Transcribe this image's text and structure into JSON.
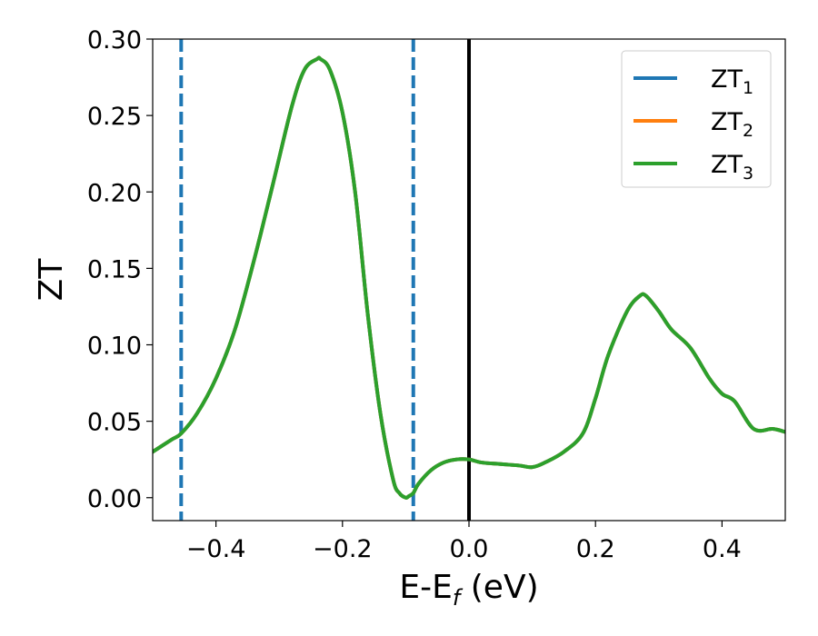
{
  "chart_data": {
    "type": "line",
    "xlabel": "E-E",
    "xlabel_sub": "f",
    "xlabel_unit": " (eV)",
    "ylabel": "ZT",
    "xlim": [
      -0.5,
      0.5
    ],
    "ylim": [
      -0.015,
      0.3
    ],
    "xticks": [
      -0.4,
      -0.2,
      0.0,
      0.2,
      0.4
    ],
    "xtick_labels": [
      "−0.4",
      "−0.2",
      "0.0",
      "0.2",
      "0.4"
    ],
    "yticks": [
      0.0,
      0.05,
      0.1,
      0.15,
      0.2,
      0.25,
      0.3
    ],
    "ytick_labels": [
      "0.00",
      "0.05",
      "0.10",
      "0.15",
      "0.20",
      "0.25",
      "0.30"
    ],
    "grid": false,
    "legend_position": "top-right",
    "vlines": [
      {
        "x": -0.455,
        "style": "dashed",
        "color": "#1f77b4"
      },
      {
        "x": -0.088,
        "style": "dashed",
        "color": "#1f77b4"
      },
      {
        "x": 0.0,
        "style": "solid",
        "color": "#000000"
      }
    ],
    "series": [
      {
        "name": "ZT",
        "sub": "1",
        "color": "#1f77b4",
        "x": [
          -0.5,
          -0.47,
          -0.455,
          -0.43,
          -0.4,
          -0.37,
          -0.34,
          -0.31,
          -0.28,
          -0.26,
          -0.24,
          -0.235,
          -0.22,
          -0.2,
          -0.18,
          -0.16,
          -0.14,
          -0.12,
          -0.11,
          -0.1,
          -0.095,
          -0.088,
          -0.08,
          -0.06,
          -0.04,
          -0.02,
          0.0,
          0.02,
          0.05,
          0.08,
          0.1,
          0.12,
          0.15,
          0.18,
          0.2,
          0.22,
          0.25,
          0.27,
          0.28,
          0.3,
          0.32,
          0.35,
          0.38,
          0.4,
          0.42,
          0.45,
          0.48,
          0.5
        ],
        "y": [
          0.03,
          0.038,
          0.042,
          0.055,
          0.078,
          0.11,
          0.155,
          0.205,
          0.256,
          0.28,
          0.287,
          0.287,
          0.28,
          0.252,
          0.2,
          0.12,
          0.055,
          0.012,
          0.003,
          0.0,
          0.001,
          0.003,
          0.009,
          0.018,
          0.023,
          0.025,
          0.025,
          0.023,
          0.022,
          0.021,
          0.02,
          0.023,
          0.03,
          0.042,
          0.065,
          0.093,
          0.122,
          0.132,
          0.132,
          0.122,
          0.11,
          0.098,
          0.078,
          0.068,
          0.063,
          0.045,
          0.045,
          0.043
        ]
      },
      {
        "name": "ZT",
        "sub": "2",
        "color": "#ff7f0e",
        "x": [
          -0.5,
          -0.47,
          -0.455,
          -0.43,
          -0.4,
          -0.37,
          -0.34,
          -0.31,
          -0.28,
          -0.26,
          -0.24,
          -0.235,
          -0.22,
          -0.2,
          -0.18,
          -0.16,
          -0.14,
          -0.12,
          -0.11,
          -0.1,
          -0.095,
          -0.088,
          -0.08,
          -0.06,
          -0.04,
          -0.02,
          0.0,
          0.02,
          0.05,
          0.08,
          0.1,
          0.12,
          0.15,
          0.18,
          0.2,
          0.22,
          0.25,
          0.27,
          0.28,
          0.3,
          0.32,
          0.35,
          0.38,
          0.4,
          0.42,
          0.45,
          0.48,
          0.5
        ],
        "y": [
          0.03,
          0.038,
          0.042,
          0.055,
          0.078,
          0.11,
          0.155,
          0.205,
          0.256,
          0.28,
          0.287,
          0.287,
          0.28,
          0.252,
          0.2,
          0.12,
          0.055,
          0.012,
          0.003,
          0.0,
          0.001,
          0.003,
          0.009,
          0.018,
          0.023,
          0.025,
          0.025,
          0.023,
          0.022,
          0.021,
          0.02,
          0.023,
          0.03,
          0.042,
          0.065,
          0.093,
          0.122,
          0.132,
          0.132,
          0.122,
          0.11,
          0.098,
          0.078,
          0.068,
          0.063,
          0.045,
          0.045,
          0.043
        ]
      },
      {
        "name": "ZT",
        "sub": "3",
        "color": "#2ca02c",
        "x": [
          -0.5,
          -0.47,
          -0.455,
          -0.43,
          -0.4,
          -0.37,
          -0.34,
          -0.31,
          -0.28,
          -0.26,
          -0.24,
          -0.235,
          -0.22,
          -0.2,
          -0.18,
          -0.16,
          -0.14,
          -0.12,
          -0.11,
          -0.1,
          -0.095,
          -0.088,
          -0.08,
          -0.06,
          -0.04,
          -0.02,
          0.0,
          0.02,
          0.05,
          0.08,
          0.1,
          0.12,
          0.15,
          0.18,
          0.2,
          0.22,
          0.25,
          0.27,
          0.28,
          0.3,
          0.32,
          0.35,
          0.38,
          0.4,
          0.42,
          0.45,
          0.48,
          0.5
        ],
        "y": [
          0.03,
          0.038,
          0.042,
          0.055,
          0.078,
          0.11,
          0.155,
          0.205,
          0.256,
          0.28,
          0.287,
          0.287,
          0.28,
          0.252,
          0.2,
          0.12,
          0.055,
          0.012,
          0.003,
          0.0,
          0.001,
          0.003,
          0.009,
          0.018,
          0.023,
          0.025,
          0.025,
          0.023,
          0.022,
          0.021,
          0.02,
          0.023,
          0.03,
          0.042,
          0.065,
          0.093,
          0.122,
          0.132,
          0.132,
          0.122,
          0.11,
          0.098,
          0.078,
          0.068,
          0.063,
          0.045,
          0.045,
          0.043
        ]
      }
    ]
  }
}
